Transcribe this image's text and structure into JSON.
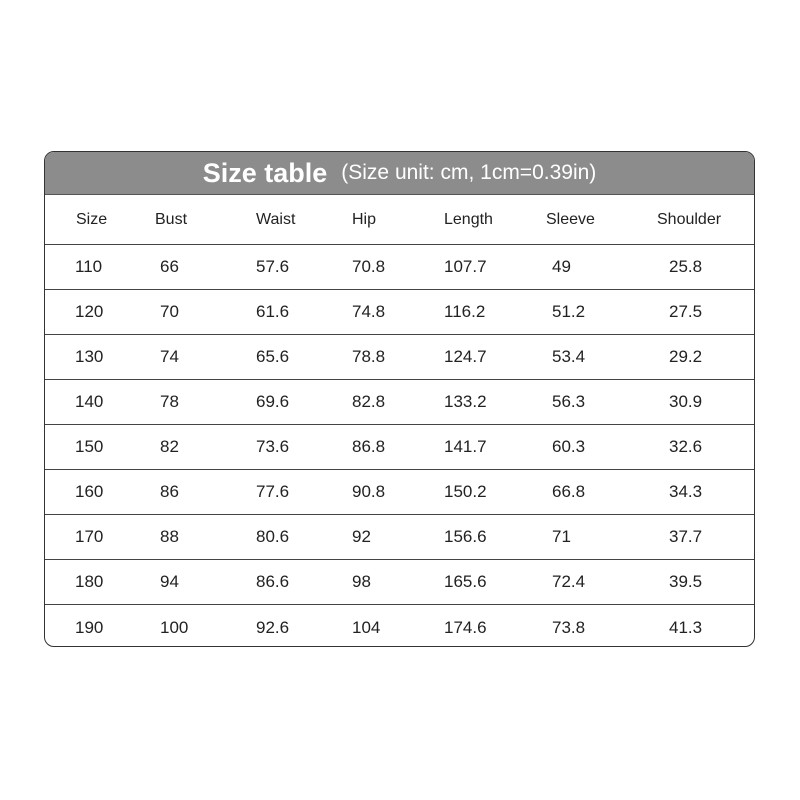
{
  "title": {
    "main": "Size table",
    "sub": "(Size unit: cm,  1cm=0.39in)"
  },
  "columns": [
    "Size",
    "Bust",
    "Waist",
    "Hip",
    "Length",
    "Sleeve",
    "Shoulder"
  ],
  "rows": [
    [
      "110",
      "66",
      "57.6",
      "70.8",
      "107.7",
      "49",
      "25.8"
    ],
    [
      "120",
      "70",
      "61.6",
      "74.8",
      "116.2",
      "51.2",
      "27.5"
    ],
    [
      "130",
      "74",
      "65.6",
      "78.8",
      "124.7",
      "53.4",
      "29.2"
    ],
    [
      "140",
      "78",
      "69.6",
      "82.8",
      "133.2",
      "56.3",
      "30.9"
    ],
    [
      "150",
      "82",
      "73.6",
      "86.8",
      "141.7",
      "60.3",
      "32.6"
    ],
    [
      "160",
      "86",
      "77.6",
      "90.8",
      "150.2",
      "66.8",
      "34.3"
    ],
    [
      "170",
      "88",
      "80.6",
      "92",
      "156.6",
      "71",
      "37.7"
    ],
    [
      "180",
      "94",
      "86.6",
      "98",
      "165.6",
      "72.4",
      "39.5"
    ],
    [
      "190",
      "100",
      "92.6",
      "104",
      "174.6",
      "73.8",
      "41.3"
    ]
  ],
  "colors": {
    "title_bar": "#8c8c8c",
    "title_text": "#ffffff",
    "border": "#333333"
  }
}
